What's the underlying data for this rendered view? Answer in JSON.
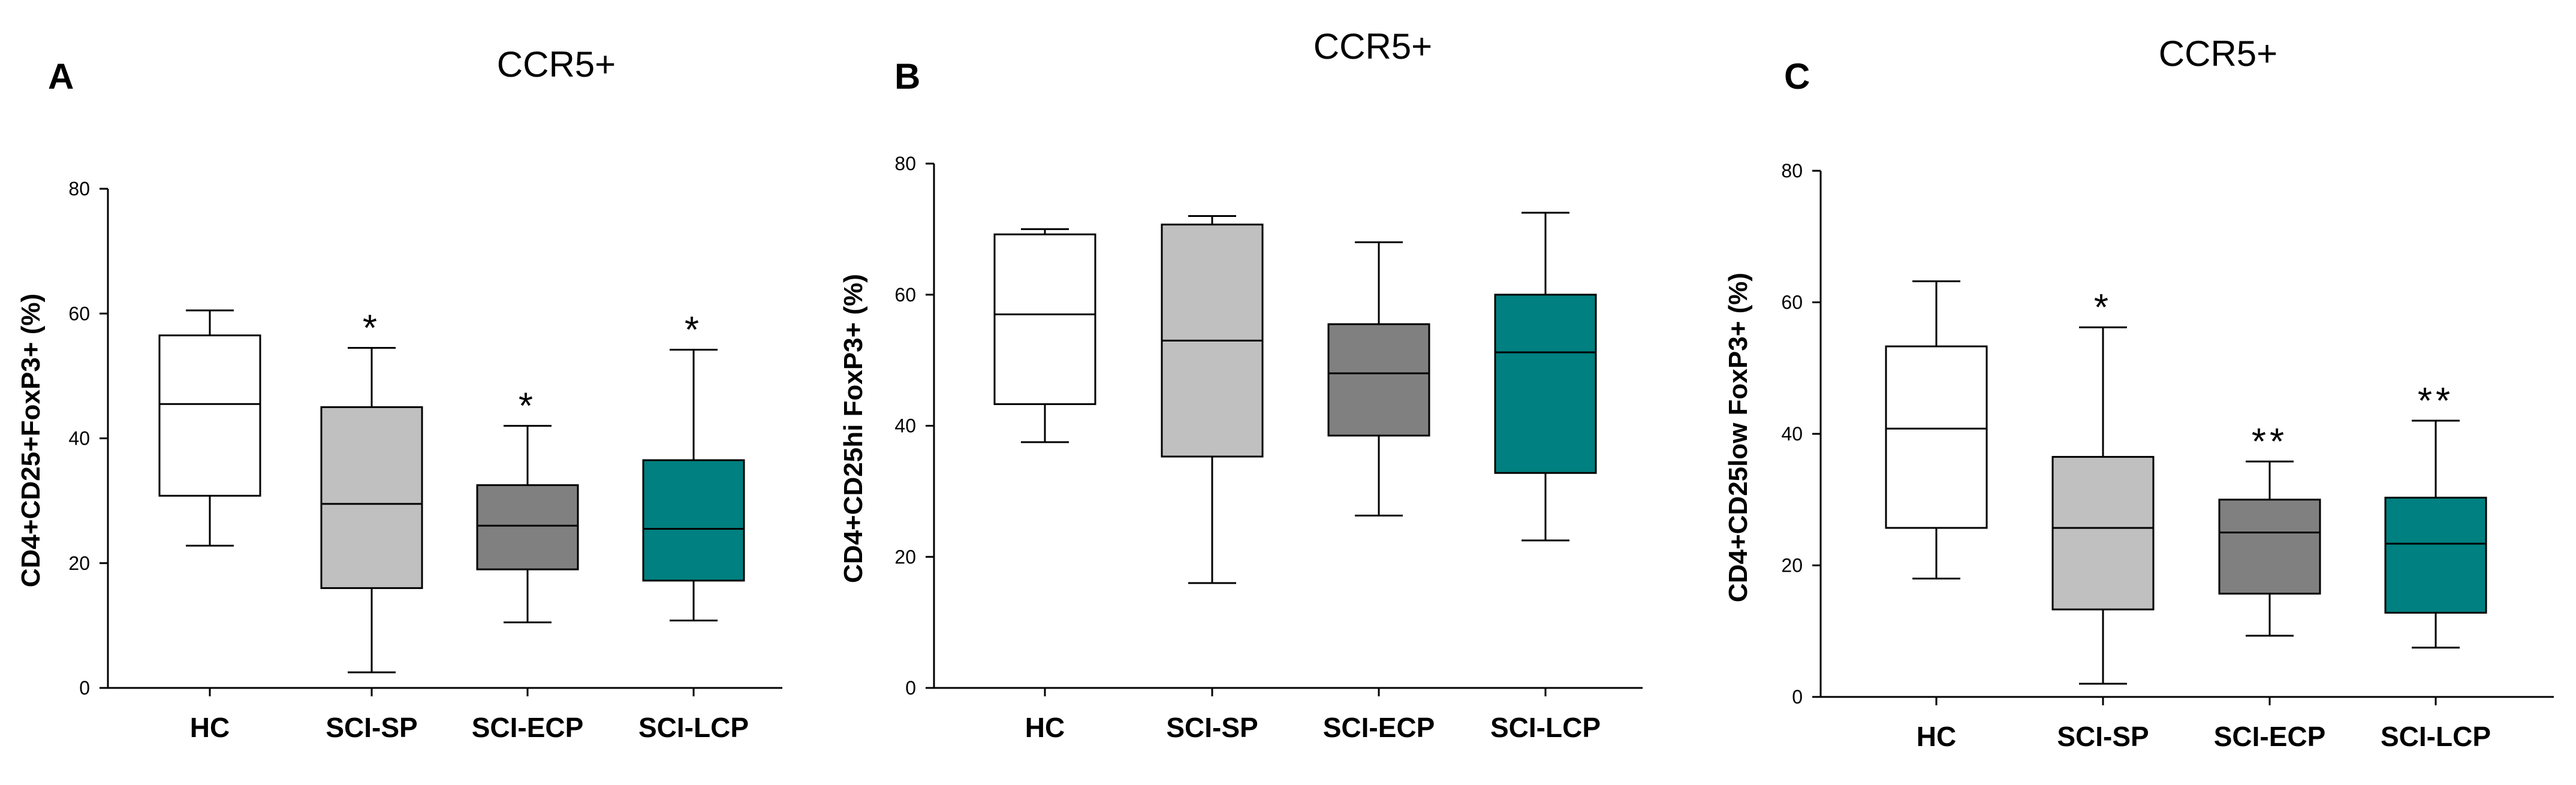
{
  "chart_data": [
    {
      "panel": "A",
      "type": "box",
      "title": "CCR5+",
      "ylabel": "CD4+CD25+FoxP3+ (%)",
      "xlabel": "",
      "ylim": [
        0,
        80
      ],
      "yticks": [
        0,
        20,
        40,
        60,
        80
      ],
      "categories": [
        "HC",
        "SCI-SP",
        "SCI-ECP",
        "SCI-LCP"
      ],
      "boxes": [
        {
          "name": "HC",
          "min": 22.8,
          "q1": 30.8,
          "median": 45.5,
          "q3": 56.5,
          "max": 60.5,
          "color": "#ffffff",
          "significance": ""
        },
        {
          "name": "SCI-SP",
          "min": 2.5,
          "q1": 16.0,
          "median": 29.5,
          "q3": 45.0,
          "max": 54.5,
          "color": "#c0c0c0",
          "significance": "*"
        },
        {
          "name": "SCI-ECP",
          "min": 10.5,
          "q1": 19.0,
          "median": 26.0,
          "q3": 32.5,
          "max": 42.0,
          "color": "#808080",
          "significance": "*"
        },
        {
          "name": "SCI-LCP",
          "min": 10.8,
          "q1": 17.2,
          "median": 25.5,
          "q3": 36.5,
          "max": 54.2,
          "color": "#008080",
          "significance": "*"
        }
      ]
    },
    {
      "panel": "B",
      "type": "box",
      "title": "CCR5+",
      "ylabel": "CD4+CD25hi FoxP3+ (%)",
      "xlabel": "",
      "ylim": [
        0,
        80
      ],
      "yticks": [
        0,
        20,
        40,
        60,
        80
      ],
      "categories": [
        "HC",
        "SCI-SP",
        "SCI-ECP",
        "SCI-LCP"
      ],
      "boxes": [
        {
          "name": "HC",
          "min": 37.5,
          "q1": 43.3,
          "median": 57.0,
          "q3": 69.2,
          "max": 70.0,
          "color": "#ffffff",
          "significance": ""
        },
        {
          "name": "SCI-SP",
          "min": 16.0,
          "q1": 35.3,
          "median": 53.0,
          "q3": 70.7,
          "max": 72.0,
          "color": "#c0c0c0",
          "significance": ""
        },
        {
          "name": "SCI-ECP",
          "min": 26.3,
          "q1": 38.5,
          "median": 48.0,
          "q3": 55.5,
          "max": 68.0,
          "color": "#808080",
          "significance": ""
        },
        {
          "name": "SCI-LCP",
          "min": 22.5,
          "q1": 32.8,
          "median": 51.2,
          "q3": 60.0,
          "max": 72.5,
          "color": "#008080",
          "significance": ""
        }
      ]
    },
    {
      "panel": "C",
      "type": "box",
      "title": "CCR5+",
      "ylabel": "CD4+CD25low FoxP3+ (%)",
      "xlabel": "",
      "ylim": [
        0,
        80
      ],
      "yticks": [
        0,
        20,
        40,
        60,
        80
      ],
      "categories": [
        "HC",
        "SCI-SP",
        "SCI-ECP",
        "SCI-LCP"
      ],
      "boxes": [
        {
          "name": "HC",
          "min": 18.0,
          "q1": 25.7,
          "median": 40.8,
          "q3": 53.3,
          "max": 63.2,
          "color": "#ffffff",
          "significance": ""
        },
        {
          "name": "SCI-SP",
          "min": 2.0,
          "q1": 13.3,
          "median": 25.7,
          "q3": 36.5,
          "max": 56.2,
          "color": "#c0c0c0",
          "significance": "*"
        },
        {
          "name": "SCI-ECP",
          "min": 9.3,
          "q1": 15.7,
          "median": 25.0,
          "q3": 30.0,
          "max": 35.8,
          "color": "#808080",
          "significance": "**"
        },
        {
          "name": "SCI-LCP",
          "min": 7.5,
          "q1": 12.8,
          "median": 23.3,
          "q3": 30.3,
          "max": 42.0,
          "color": "#008080",
          "significance": "**"
        }
      ]
    }
  ]
}
